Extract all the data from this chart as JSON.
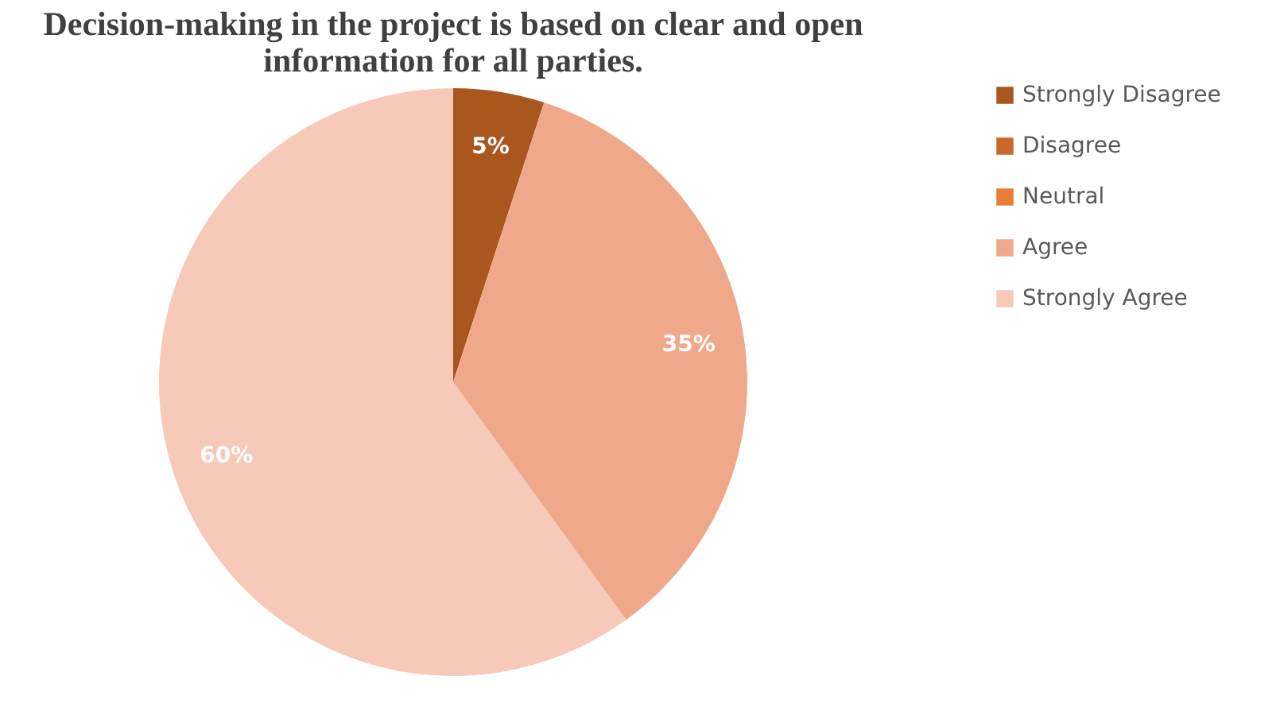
{
  "chart_data": {
    "type": "pie",
    "title": "Decision-making in the project is based on clear and open information for all parties.",
    "categories": [
      "Strongly Disagree",
      "Disagree",
      "Neutral",
      "Agree",
      "Strongly Agree"
    ],
    "values": [
      5,
      0,
      0,
      35,
      60
    ],
    "colors": [
      "#a9561f",
      "#c8682c",
      "#ea7d35",
      "#f0a88a",
      "#f6c9b8"
    ],
    "value_labels": [
      "5%",
      null,
      null,
      "35%",
      "60%"
    ],
    "legend": "right"
  }
}
